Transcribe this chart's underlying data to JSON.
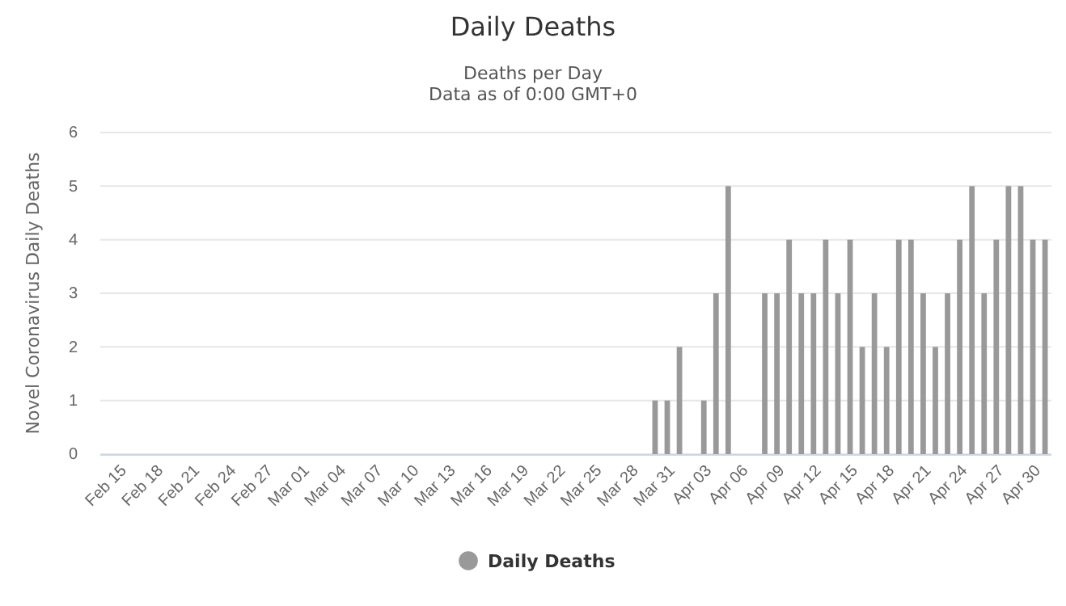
{
  "chart_data": {
    "type": "bar",
    "title": "Daily Deaths",
    "subtitle": "Deaths per Day\nData as of 0:00 GMT+0",
    "ylabel": "Novel Coronavirus Daily Deaths",
    "categories": [
      "Feb 15",
      null,
      null,
      "Feb 18",
      null,
      null,
      "Feb 21",
      null,
      null,
      "Feb 24",
      null,
      null,
      "Feb 27",
      null,
      null,
      "Mar 01",
      null,
      null,
      "Mar 04",
      null,
      null,
      "Mar 07",
      null,
      null,
      "Mar 10",
      null,
      null,
      "Mar 13",
      null,
      null,
      "Mar 16",
      null,
      null,
      "Mar 19",
      null,
      null,
      "Mar 22",
      null,
      null,
      "Mar 25",
      null,
      null,
      "Mar 28",
      null,
      null,
      "Mar 31",
      null,
      null,
      "Apr 03",
      null,
      null,
      "Apr 06",
      null,
      null,
      "Apr 09",
      null,
      null,
      "Apr 12",
      null,
      null,
      "Apr 15",
      null,
      null,
      "Apr 18",
      null,
      null,
      "Apr 21",
      null,
      null,
      "Apr 24",
      null,
      null,
      "Apr 27",
      null,
      null,
      "Apr 30",
      null,
      null
    ],
    "series": [
      {
        "name": "Daily Deaths",
        "color": "#999999",
        "values": [
          0,
          0,
          0,
          0,
          0,
          0,
          0,
          0,
          0,
          0,
          0,
          0,
          0,
          0,
          0,
          0,
          0,
          0,
          0,
          0,
          0,
          0,
          0,
          0,
          0,
          0,
          0,
          0,
          0,
          0,
          0,
          0,
          0,
          0,
          0,
          0,
          0,
          0,
          0,
          0,
          0,
          0,
          0,
          0,
          0,
          1,
          1,
          2,
          0,
          1,
          3,
          5,
          0,
          0,
          3,
          3,
          4,
          3,
          3,
          4,
          3,
          4,
          2,
          3,
          2,
          4,
          4,
          3,
          2,
          3,
          4,
          5,
          3,
          4,
          5,
          5,
          4,
          4
        ]
      }
    ],
    "ylim": [
      0,
      6
    ],
    "yticks": [
      0,
      1,
      2,
      3,
      4,
      5,
      6
    ],
    "grid": "y",
    "legend": "bottom",
    "marker": "circle"
  }
}
